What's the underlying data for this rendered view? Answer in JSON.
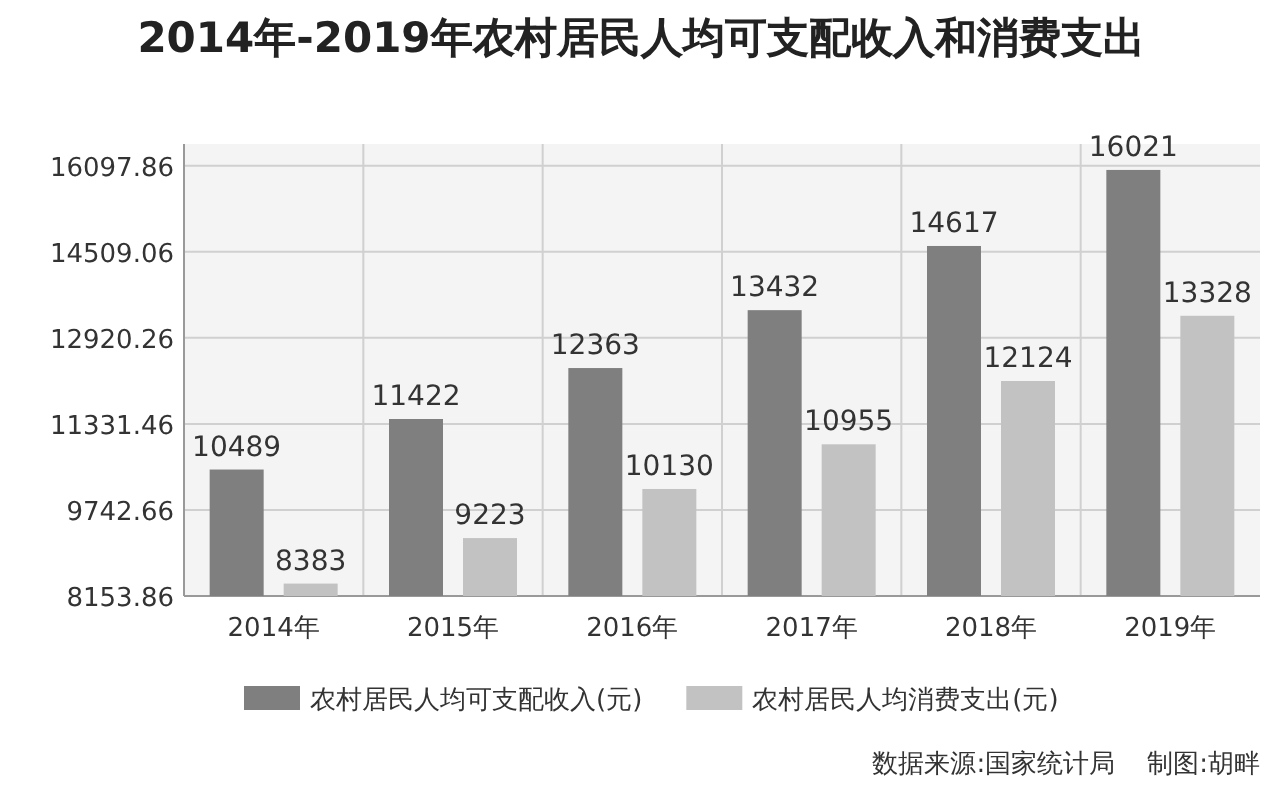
{
  "chart_data": {
    "type": "bar",
    "title": "2014年-2019年农村居民人均可支配收入和消费支出",
    "categories": [
      "2014年",
      "2015年",
      "2016年",
      "2017年",
      "2018年",
      "2019年"
    ],
    "series": [
      {
        "name": "农村居民人均可支配收入(元)",
        "color": "#7f7f7f",
        "values": [
          10489,
          11422,
          12363,
          13432,
          14617,
          16021
        ]
      },
      {
        "name": "农村居民人均消费支出(元)",
        "color": "#c2c2c2",
        "values": [
          8383,
          9223,
          10130,
          10955,
          12124,
          13328
        ]
      }
    ],
    "ylim": [
      8153.86,
      16500
    ],
    "yticks": [
      8153.86,
      9742.66,
      11331.46,
      12920.26,
      14509.06,
      16097.86
    ],
    "grid": true,
    "legend": "bottom",
    "data_labels": true,
    "annotations": [
      "数据来源:国家统计局",
      "制图:胡畔"
    ]
  }
}
